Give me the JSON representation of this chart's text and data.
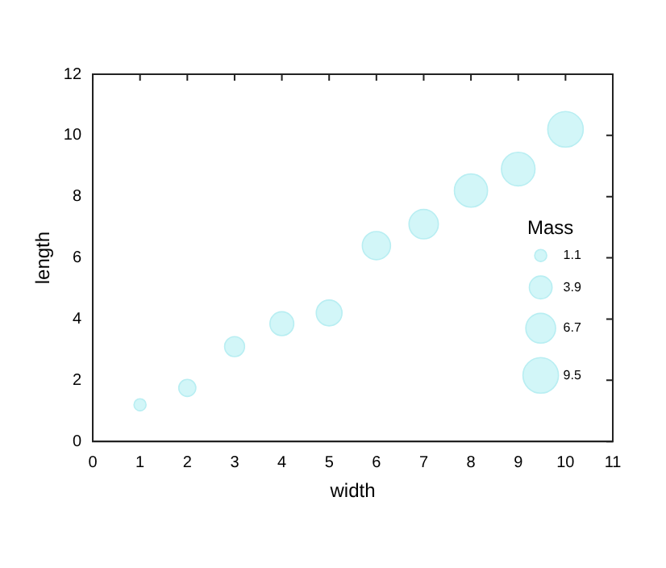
{
  "chart_data": {
    "type": "bubble",
    "xlabel": "width",
    "ylabel": "length",
    "legend_title": "Mass",
    "x": [
      1,
      2,
      3,
      4,
      5,
      6,
      7,
      8,
      9,
      10
    ],
    "series": [
      {
        "color": "#d2f6f8",
        "values": [
          1.2,
          1.75,
          3.1,
          3.85,
          4.2,
          6.4,
          7.1,
          8.2,
          8.9,
          10.2
        ],
        "sizes": [
          1.1,
          2.2,
          3.0,
          4.3,
          5.0,
          6.0,
          6.5,
          8.3,
          8.5,
          9.5
        ]
      }
    ],
    "size_legend": [
      1.1,
      3.9,
      6.7,
      9.5
    ],
    "xlim": [
      0,
      11
    ],
    "xticks": [
      0,
      1,
      2,
      3,
      4,
      5,
      6,
      7,
      8,
      9,
      10,
      11
    ],
    "ylim": [
      0,
      12
    ],
    "yticks": [
      0,
      2,
      4,
      6,
      8,
      10,
      12
    ],
    "grid": false
  }
}
